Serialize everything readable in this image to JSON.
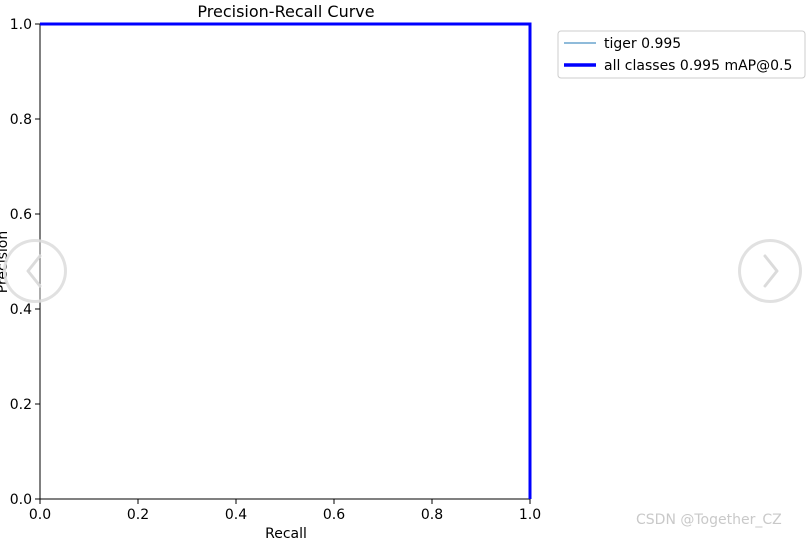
{
  "chart_data": {
    "type": "line",
    "title": "Precision-Recall Curve",
    "xlabel": "Recall",
    "ylabel": "Precision",
    "xlim": [
      0.0,
      1.0
    ],
    "ylim": [
      0.0,
      1.0
    ],
    "xticks": [
      "0.0",
      "0.2",
      "0.4",
      "0.6",
      "0.8",
      "1.0"
    ],
    "yticks": [
      "0.0",
      "0.2",
      "0.4",
      "0.6",
      "0.8",
      "1.0"
    ],
    "grid": false,
    "legend_position": "outside-top-right",
    "series": [
      {
        "name": "tiger 0.995",
        "color": "#1f77b4",
        "line_width": "thin",
        "x": [
          0.0,
          1.0,
          1.0
        ],
        "y": [
          1.0,
          1.0,
          0.0
        ]
      },
      {
        "name": "all classes 0.995 mAP@0.5",
        "color": "#0000ff",
        "line_width": "thick",
        "x": [
          0.0,
          1.0,
          1.0
        ],
        "y": [
          1.0,
          1.0,
          0.0
        ]
      }
    ]
  },
  "watermark": "CSDN @Together_CZ",
  "nav": {
    "prev_icon": "chevron-left-icon",
    "next_icon": "chevron-right-icon"
  }
}
